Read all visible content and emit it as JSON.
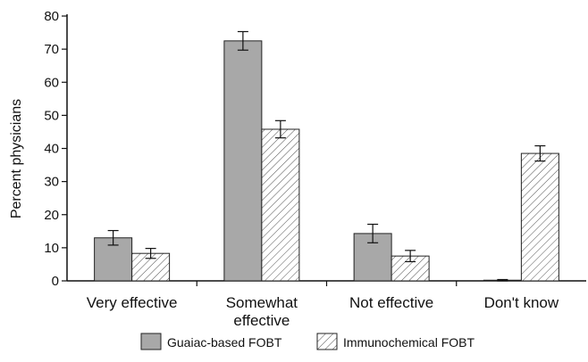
{
  "chart_data": {
    "type": "bar",
    "categories": [
      "Very effective",
      "Somewhat\neffective",
      "Not effective",
      "Don't know"
    ],
    "series": [
      {
        "name": "Guaiac-based FOBT",
        "values": [
          13,
          72.5,
          14.3,
          0.2
        ],
        "error": [
          2.2,
          2.8,
          2.8,
          0.2
        ],
        "color": "#a8a8a8",
        "pattern": "solid"
      },
      {
        "name": "Immunochemical FOBT",
        "values": [
          8.3,
          45.8,
          7.5,
          38.5
        ],
        "error": [
          1.5,
          2.6,
          1.7,
          2.3
        ],
        "color": "#ffffff",
        "pattern": "hatch"
      }
    ],
    "ylabel": "Percent physicians",
    "xlabel": "",
    "ylim": [
      0,
      80
    ],
    "yticks": [
      0,
      10,
      20,
      30,
      40,
      50,
      60,
      70,
      80
    ],
    "grid": false,
    "legend": "bottom"
  }
}
